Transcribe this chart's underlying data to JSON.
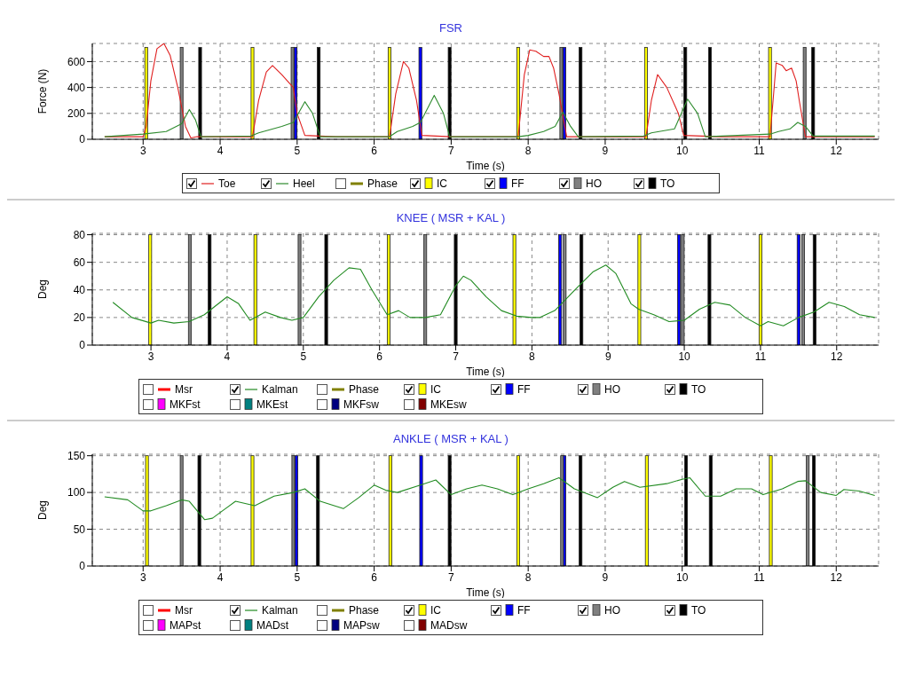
{
  "chart_data": [
    {
      "type": "line",
      "title": "FSR",
      "xlabel": "Time (s)",
      "ylabel": "Force (N)",
      "xlim": [
        2.34,
        12.55
      ],
      "xticks": [
        3,
        4,
        5,
        6,
        7,
        8,
        9,
        10,
        11,
        12
      ],
      "ylim": [
        0,
        740
      ],
      "yticks": [
        0,
        200,
        400,
        600
      ],
      "grid": true,
      "legend": "bottom",
      "series": [
        {
          "name": "Toe",
          "color": "#e02020",
          "x": [
            2.5,
            3.0,
            3.04,
            3.1,
            3.18,
            3.27,
            3.35,
            3.45,
            3.55,
            3.62,
            3.7,
            4.0,
            4.42,
            4.5,
            4.6,
            4.68,
            4.8,
            4.95,
            5.0,
            5.1,
            5.5,
            6.2,
            6.28,
            6.38,
            6.45,
            6.55,
            6.62,
            7.0,
            7.87,
            7.95,
            8.02,
            8.1,
            8.2,
            8.27,
            8.33,
            8.4,
            8.5,
            9.0,
            9.53,
            9.6,
            9.68,
            9.8,
            9.95,
            10.02,
            10.5,
            11.14,
            11.18,
            11.22,
            11.3,
            11.35,
            11.42,
            11.48,
            11.52,
            11.6,
            12.5
          ],
          "values": [
            20,
            20,
            100,
            450,
            700,
            740,
            650,
            400,
            100,
            10,
            20,
            20,
            20,
            300,
            520,
            570,
            500,
            400,
            200,
            30,
            20,
            20,
            350,
            600,
            550,
            300,
            30,
            20,
            20,
            500,
            690,
            680,
            640,
            640,
            550,
            350,
            20,
            20,
            20,
            300,
            500,
            400,
            200,
            30,
            20,
            20,
            300,
            590,
            570,
            530,
            550,
            450,
            300,
            20,
            20
          ]
        },
        {
          "name": "Heel",
          "color": "#2e8b2e",
          "x": [
            2.5,
            3.0,
            3.3,
            3.5,
            3.6,
            3.68,
            3.75,
            4.4,
            4.5,
            4.8,
            4.95,
            5.1,
            5.2,
            5.3,
            6.2,
            6.3,
            6.5,
            6.6,
            6.78,
            6.9,
            6.98,
            7.87,
            8.0,
            8.2,
            8.35,
            8.45,
            8.55,
            8.65,
            9.5,
            9.6,
            9.9,
            10.07,
            10.2,
            10.3,
            11.14,
            11.25,
            11.4,
            11.5,
            11.6,
            11.7,
            12.5
          ],
          "values": [
            20,
            40,
            60,
            120,
            230,
            150,
            20,
            25,
            50,
            100,
            130,
            290,
            200,
            20,
            20,
            60,
            100,
            130,
            340,
            200,
            20,
            20,
            30,
            60,
            100,
            210,
            100,
            20,
            25,
            50,
            80,
            310,
            200,
            20,
            40,
            60,
            80,
            130,
            100,
            25,
            25
          ]
        },
        {
          "name": "Phase",
          "color": "#808000"
        },
        {
          "name": "IC",
          "type": "bar",
          "color": "#ffff00",
          "x": [
            3.04,
            4.42,
            6.2,
            7.87,
            9.53,
            11.14
          ],
          "values": [
            710,
            710,
            710,
            710,
            710,
            710
          ]
        },
        {
          "name": "FF",
          "type": "bar",
          "color": "#0000ff",
          "x": [
            4.98,
            6.6,
            8.47
          ],
          "values": [
            710,
            710,
            710
          ]
        },
        {
          "name": "HO",
          "type": "bar",
          "color": "#808080",
          "x": [
            3.5,
            4.94,
            8.43,
            11.59
          ],
          "values": [
            710,
            710,
            710,
            710
          ]
        },
        {
          "name": "TO",
          "type": "bar",
          "color": "#000000",
          "x": [
            3.74,
            5.28,
            6.98,
            8.68,
            10.04,
            10.36,
            11.7
          ],
          "values": [
            710,
            710,
            710,
            710,
            710,
            710,
            710
          ]
        }
      ]
    },
    {
      "type": "line",
      "title": "KNEE ( MSR + KAL )",
      "xlabel": "Time (s)",
      "ylabel": "Deg",
      "xlim": [
        2.23,
        12.55
      ],
      "xticks": [
        3,
        4,
        5,
        6,
        7,
        8,
        9,
        10,
        11,
        12
      ],
      "ylim": [
        0,
        81
      ],
      "yticks": [
        0,
        20,
        40,
        60,
        80
      ],
      "grid": true,
      "legend": "bottom",
      "series": [
        {
          "name": "Msr",
          "color": "#ff0000"
        },
        {
          "name": "Kalman",
          "color": "#228b22",
          "x": [
            2.5,
            2.75,
            3.0,
            3.1,
            3.3,
            3.5,
            3.7,
            4.0,
            4.15,
            4.3,
            4.5,
            4.7,
            4.85,
            5.0,
            5.2,
            5.4,
            5.6,
            5.75,
            5.9,
            6.1,
            6.25,
            6.4,
            6.6,
            6.8,
            7.0,
            7.1,
            7.2,
            7.4,
            7.6,
            7.8,
            8.0,
            8.1,
            8.3,
            8.6,
            8.8,
            8.97,
            9.1,
            9.3,
            9.4,
            9.6,
            9.8,
            10.0,
            10.2,
            10.4,
            10.6,
            10.8,
            11.0,
            11.1,
            11.3,
            11.5,
            11.7,
            11.9,
            12.1,
            12.3,
            12.5
          ],
          "values": [
            31,
            20,
            16,
            18,
            16,
            17,
            22,
            35,
            30,
            18,
            24,
            20,
            18,
            20,
            35,
            47,
            56,
            55,
            40,
            22,
            25,
            20,
            20,
            22,
            43,
            50,
            47,
            35,
            25,
            21,
            20,
            20,
            25,
            42,
            53,
            58,
            52,
            30,
            26,
            22,
            17,
            18,
            26,
            31,
            29,
            20,
            14,
            17,
            14,
            20,
            24,
            31,
            28,
            22,
            20
          ]
        },
        {
          "name": "Phase",
          "color": "#808000"
        },
        {
          "name": "IC",
          "type": "bar",
          "color": "#ffff00",
          "x": [
            2.99,
            4.37,
            6.12,
            7.77,
            9.41,
            11.0
          ],
          "values": [
            80,
            80,
            80,
            80,
            80,
            80
          ]
        },
        {
          "name": "FF",
          "type": "bar",
          "color": "#0000ff",
          "x": [
            8.37,
            9.93,
            11.5
          ],
          "values": [
            80,
            80,
            80
          ]
        },
        {
          "name": "HO",
          "type": "bar",
          "color": "#808080",
          "x": [
            3.51,
            4.95,
            6.6,
            8.43,
            9.98,
            11.56
          ],
          "values": [
            80,
            80,
            80,
            80,
            80,
            80
          ]
        },
        {
          "name": "TO",
          "type": "bar",
          "color": "#000000",
          "x": [
            3.77,
            5.3,
            7.0,
            8.65,
            10.33,
            11.71
          ],
          "values": [
            80,
            80,
            80,
            80,
            80,
            80
          ]
        },
        {
          "name": "MKFst",
          "type": "bar",
          "color": "#ff00ff"
        },
        {
          "name": "MKEst",
          "type": "bar",
          "color": "#008080"
        },
        {
          "name": "MKFsw",
          "type": "bar",
          "color": "#000080"
        },
        {
          "name": "MKEsw",
          "type": "bar",
          "color": "#800000"
        }
      ]
    },
    {
      "type": "line",
      "title": "ANKLE ( MSR + KAL )",
      "xlabel": "Time (s)",
      "ylabel": "Deg",
      "xlim": [
        2.34,
        12.55
      ],
      "xticks": [
        3,
        4,
        5,
        6,
        7,
        8,
        9,
        10,
        11,
        12
      ],
      "ylim": [
        0,
        152
      ],
      "yticks": [
        0,
        50,
        100,
        150
      ],
      "grid": true,
      "legend": "bottom",
      "series": [
        {
          "name": "Msr",
          "color": "#ff0000"
        },
        {
          "name": "Kalman",
          "color": "#228b22",
          "x": [
            2.5,
            2.8,
            3.0,
            3.1,
            3.3,
            3.5,
            3.6,
            3.8,
            3.9,
            4.2,
            4.45,
            4.7,
            4.95,
            5.1,
            5.3,
            5.6,
            5.8,
            6.0,
            6.15,
            6.3,
            6.6,
            6.8,
            7.0,
            7.2,
            7.4,
            7.6,
            7.8,
            8.0,
            8.2,
            8.4,
            8.6,
            8.9,
            9.1,
            9.25,
            9.45,
            9.8,
            10.0,
            10.1,
            10.3,
            10.5,
            10.7,
            10.9,
            11.05,
            11.3,
            11.5,
            11.6,
            11.8,
            12.0,
            12.1,
            12.3,
            12.5
          ],
          "values": [
            94,
            90,
            75,
            75,
            82,
            90,
            88,
            63,
            65,
            88,
            82,
            95,
            100,
            105,
            88,
            78,
            93,
            110,
            103,
            100,
            110,
            117,
            97,
            105,
            110,
            105,
            97,
            105,
            112,
            120,
            105,
            93,
            107,
            115,
            107,
            112,
            118,
            120,
            95,
            95,
            105,
            105,
            97,
            105,
            115,
            116,
            100,
            96,
            104,
            102,
            96
          ]
        },
        {
          "name": "Phase",
          "color": "#808000"
        },
        {
          "name": "IC",
          "type": "bar",
          "color": "#ffff00",
          "x": [
            3.05,
            4.42,
            6.21,
            7.87,
            9.54,
            11.15
          ],
          "values": [
            150,
            150,
            150,
            150,
            150,
            150
          ]
        },
        {
          "name": "FF",
          "type": "bar",
          "color": "#0000ff",
          "x": [
            4.99,
            6.61,
            8.47
          ],
          "values": [
            150,
            150,
            150
          ]
        },
        {
          "name": "HO",
          "type": "bar",
          "color": "#808080",
          "x": [
            3.5,
            4.95,
            8.44,
            11.63
          ],
          "values": [
            150,
            150,
            150,
            150
          ]
        },
        {
          "name": "TO",
          "type": "bar",
          "color": "#000000",
          "x": [
            3.73,
            5.27,
            6.98,
            8.68,
            10.05,
            10.37,
            11.71
          ],
          "values": [
            150,
            150,
            150,
            150,
            150,
            150,
            150
          ]
        },
        {
          "name": "MAPst",
          "type": "bar",
          "color": "#ff00ff"
        },
        {
          "name": "MADst",
          "type": "bar",
          "color": "#008080"
        },
        {
          "name": "MAPsw",
          "type": "bar",
          "color": "#000080"
        },
        {
          "name": "MADsw",
          "type": "bar",
          "color": "#800000"
        }
      ]
    }
  ]
}
